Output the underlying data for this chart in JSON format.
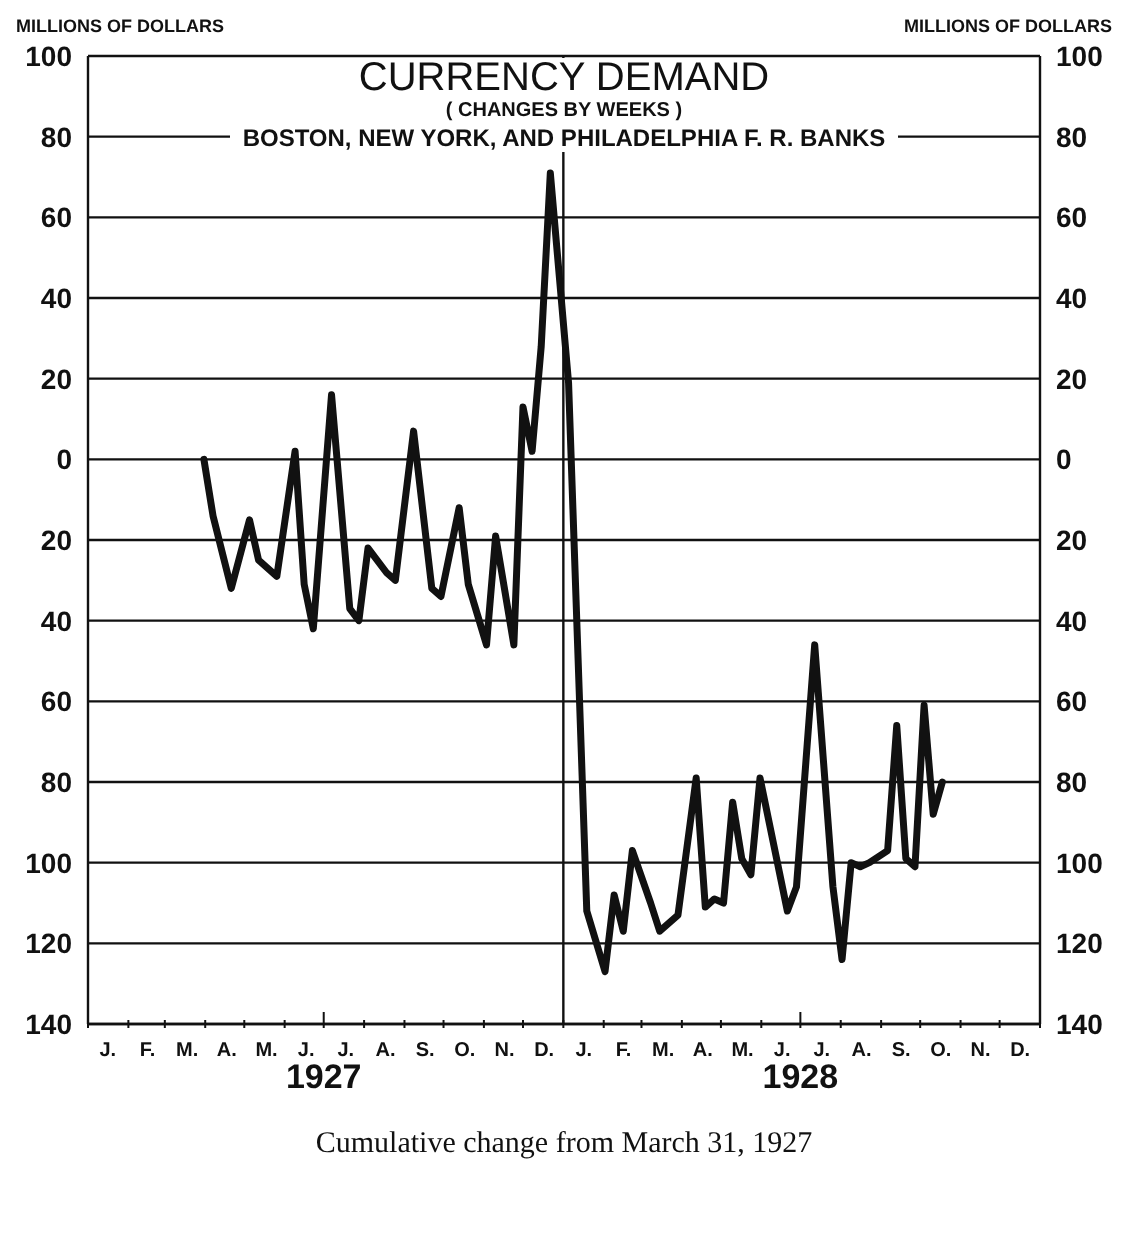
{
  "chart_data": {
    "type": "line",
    "title": "CURRENCY DEMAND",
    "subtitle": "( CHANGES BY WEEKS )",
    "annotations": [
      "BOSTON, NEW YORK, AND PHILADELPHIA F. R. BANKS",
      "Cumulative change from March 31, 1927",
      "J.",
      "F.",
      "M.",
      "A.",
      "M.",
      "J.",
      "J.",
      "A.",
      "S.",
      "O.",
      "N.",
      "D.",
      "J.",
      "F.",
      "M.",
      "A.",
      "M.",
      "J.",
      "J.",
      "A.",
      "S.",
      "O.",
      "N.",
      "D."
    ],
    "ylabel": "MILLIONS OF DOLLARS",
    "y2label": "MILLIONS OF DOLLARS",
    "x": [
      "1927-03-31",
      "1927-04-07",
      "1927-04-21",
      "1927-05-05",
      "1927-05-12",
      "1927-05-26",
      "1927-06-09",
      "1927-06-16",
      "1927-06-23",
      "1927-07-07",
      "1927-07-21",
      "1927-07-28",
      "1927-08-04",
      "1927-08-18",
      "1927-08-25",
      "1927-09-08",
      "1927-09-22",
      "1927-09-29",
      "1927-10-13",
      "1927-10-20",
      "1927-11-03",
      "1927-11-10",
      "1927-11-24",
      "1927-12-01",
      "1927-12-08",
      "1927-12-15",
      "1927-12-22",
      "1928-01-05",
      "1928-01-19",
      "1928-02-02",
      "1928-02-09",
      "1928-02-16",
      "1928-02-23",
      "1928-03-08",
      "1928-03-15",
      "1928-03-29",
      "1928-04-12",
      "1928-04-19",
      "1928-04-26",
      "1928-05-03",
      "1928-05-10",
      "1928-05-17",
      "1928-05-24",
      "1928-05-31",
      "1928-06-21",
      "1928-06-28",
      "1928-07-12",
      "1928-07-26",
      "1928-08-02",
      "1928-08-09",
      "1928-08-16",
      "1928-08-23",
      "1928-09-06",
      "1928-09-13",
      "1928-09-20",
      "1928-09-27",
      "1928-10-04",
      "1928-10-11",
      "1928-10-18"
    ],
    "series": [
      {
        "color": "#111111",
        "values": [
          0,
          -14,
          -32,
          -15,
          -25,
          -29,
          2,
          -31,
          -42,
          16,
          -37,
          -40,
          -22,
          -28,
          -30,
          7,
          -32,
          -34,
          -12,
          -31,
          -46,
          -19,
          -46,
          13,
          2,
          28,
          71,
          19,
          -112,
          -127,
          -108,
          -117,
          -97,
          -110,
          -117,
          -113,
          -79,
          -111,
          -109,
          -110,
          -85,
          -99,
          -103,
          -79,
          -112,
          -106,
          -46,
          -106,
          -124,
          -100,
          -101,
          -100,
          -97,
          -66,
          -99,
          -101,
          -61,
          -88,
          -80
        ]
      }
    ],
    "xlim": [
      "1927-01-01",
      "1929-01-01"
    ],
    "xticks": [
      {
        "value": "1927-01-01",
        "label": null
      },
      {
        "value": "1927-02-01",
        "label": null
      },
      {
        "value": "1927-03-01",
        "label": null
      },
      {
        "value": "1927-04-01",
        "label": null
      },
      {
        "value": "1927-05-01",
        "label": null
      },
      {
        "value": "1927-06-01",
        "label": null
      },
      {
        "value": "1927-07-01",
        "label": "1927"
      },
      {
        "value": "1927-08-01",
        "label": null
      },
      {
        "value": "1927-09-01",
        "label": null
      },
      {
        "value": "1927-10-01",
        "label": null
      },
      {
        "value": "1927-11-01",
        "label": null
      },
      {
        "value": "1927-12-01",
        "label": null
      },
      {
        "value": "1928-01-01",
        "label": null
      },
      {
        "value": "1928-02-01",
        "label": null
      },
      {
        "value": "1928-03-01",
        "label": null
      },
      {
        "value": "1928-04-01",
        "label": null
      },
      {
        "value": "1928-05-01",
        "label": null
      },
      {
        "value": "1928-06-01",
        "label": null
      },
      {
        "value": "1928-07-01",
        "label": "1928"
      },
      {
        "value": "1928-08-01",
        "label": null
      },
      {
        "value": "1928-09-01",
        "label": null
      },
      {
        "value": "1928-10-01",
        "label": null
      },
      {
        "value": "1928-11-01",
        "label": null
      },
      {
        "value": "1928-12-01",
        "label": null
      },
      {
        "value": "1929-01-01",
        "label": null
      }
    ],
    "ylim": [
      -140,
      100
    ],
    "yticks": [
      {
        "value": -140,
        "label": "140"
      },
      {
        "value": -120,
        "label": "120"
      },
      {
        "value": -100,
        "label": "100"
      },
      {
        "value": -80,
        "label": "80"
      },
      {
        "value": -60,
        "label": "60"
      },
      {
        "value": -40,
        "label": "40"
      },
      {
        "value": -20,
        "label": "20"
      },
      0,
      20,
      40,
      60,
      80,
      100
    ],
    "y2lim": [
      -140,
      100
    ],
    "y2ticks": [
      {
        "value": -140,
        "label": "140"
      },
      {
        "value": -120,
        "label": "120"
      },
      {
        "value": -100,
        "label": "100"
      },
      {
        "value": -80,
        "label": "80"
      },
      {
        "value": -60,
        "label": "60"
      },
      {
        "value": -40,
        "label": "40"
      },
      {
        "value": -20,
        "label": "20"
      },
      0,
      20,
      40,
      60,
      80,
      100
    ],
    "ref_lines": [
      {
        "axis": "x",
        "value": "1928-01-01",
        "color": "#111111"
      }
    ],
    "grid": "y",
    "line_style": "solid",
    "marker": "none",
    "legend": false
  }
}
